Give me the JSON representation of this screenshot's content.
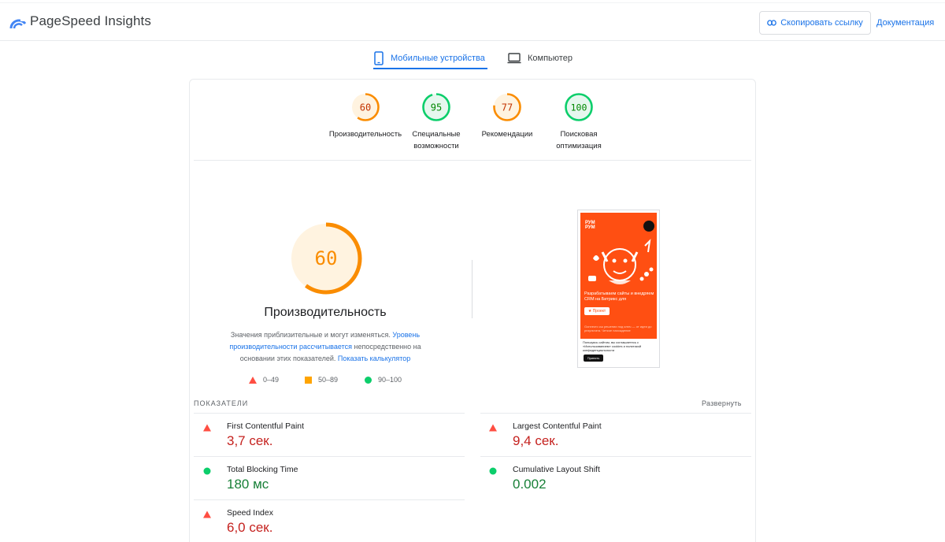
{
  "header": {
    "brand": "PageSpeed Insights",
    "copy_link_label": "Скопировать ссылку",
    "docs_label": "Документация"
  },
  "tabs": [
    {
      "label": "Мобильные устройства",
      "active": true,
      "icon": "phone-icon"
    },
    {
      "label": "Компьютер",
      "active": false,
      "icon": "monitor-icon"
    }
  ],
  "categories": [
    {
      "score": "60",
      "label_line1": "Производительность",
      "label_line2": "",
      "color": "#fa8c00",
      "fraction": 0.6
    },
    {
      "score": "95",
      "label_line1": "Специальные",
      "label_line2": "возможности",
      "color": "#0cce6b",
      "fraction": 0.95
    },
    {
      "score": "77",
      "label_line1": "Рекомендации",
      "label_line2": "",
      "color": "#fa8c00",
      "fraction": 0.77
    },
    {
      "score": "100",
      "label_line1": "Поисковая",
      "label_line2": "оптимизация",
      "color": "#0cce6b",
      "fraction": 1.0
    }
  ],
  "performance": {
    "score": "60",
    "fraction": 0.6,
    "title": "Производительность",
    "desc_part1": "Значения приблизительные и могут изменяться.",
    "desc_link1": "Уровень производительности рассчитывается",
    "desc_part2": "непосредственно на основании этих показателей.",
    "desc_link2": "Показать калькулятор"
  },
  "legend": [
    {
      "range": "0–49",
      "color": "#ff4e42",
      "shape": "triangle"
    },
    {
      "range": "50–89",
      "color": "#ffa400",
      "shape": "square"
    },
    {
      "range": "90–100",
      "color": "#0cce6b",
      "shape": "circle"
    }
  ],
  "preview": {
    "logo_line1": "РУМ",
    "logo_line2": "РУМ",
    "headline": "Разрабатываем сайты и внедряем CRM на Битрикс для",
    "button": "★ Проект",
    "small_text": "Gonпекто кш решении под ключ — от идеи до результата. Четкое нахождение",
    "cookie_text": "Пользуясь сайтом, вы соглашаетесь с «Использованием» cookies и политикой конфиденциальности",
    "cookie_button": "Принять"
  },
  "metrics": {
    "heading": "ПОКАЗАТЕЛИ",
    "expand_label": "Развернуть",
    "items": [
      {
        "name": "First Contentful Paint",
        "value": "3,7 сек.",
        "status": "red"
      },
      {
        "name": "Largest Contentful Paint",
        "value": "9,4 сек.",
        "status": "red"
      },
      {
        "name": "Total Blocking Time",
        "value": "180 мс",
        "status": "green"
      },
      {
        "name": "Cumulative Layout Shift",
        "value": "0.002",
        "status": "green"
      },
      {
        "name": "Speed Index",
        "value": "6,0 сек.",
        "status": "red"
      }
    ]
  },
  "colors": {
    "accent": "#1a73e8",
    "fail": "#c5221f",
    "pass": "#188038",
    "average": "#fa8c00"
  }
}
